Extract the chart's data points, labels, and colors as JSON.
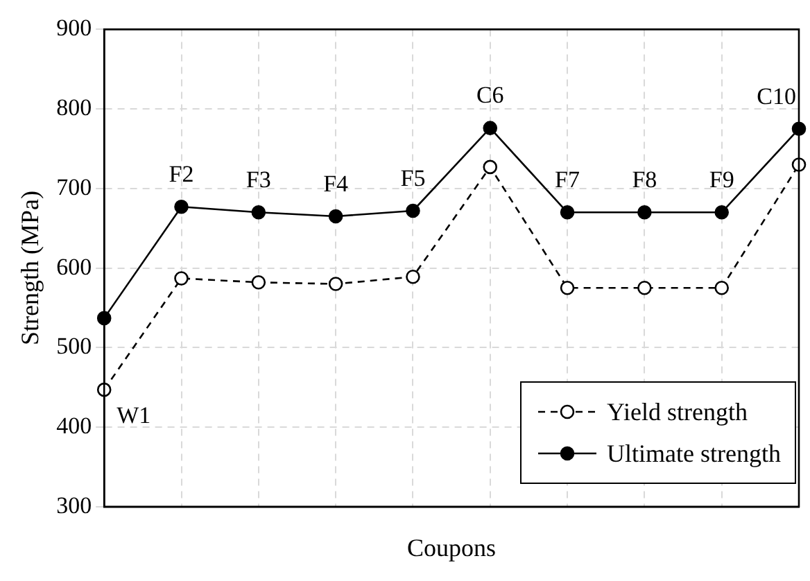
{
  "chart_data": {
    "type": "line",
    "xlabel": "Coupons",
    "ylabel": "Strength (MPa)",
    "categories": [
      "W1",
      "F2",
      "F3",
      "F4",
      "F5",
      "C6",
      "F7",
      "F8",
      "F9",
      "C10"
    ],
    "series": [
      {
        "name": "Yield strength",
        "color": "#000000",
        "line_style": "dashed",
        "values": [
          447,
          587,
          582,
          580,
          589,
          727,
          575,
          575,
          575,
          730
        ]
      },
      {
        "name": "Ultimate strength",
        "color": "#000000",
        "line_style": "solid",
        "values": [
          537,
          677,
          670,
          665,
          672,
          776,
          670,
          670,
          670,
          775
        ]
      }
    ],
    "ylim": [
      300,
      900
    ],
    "yticks": [
      300,
      400,
      500,
      600,
      700,
      800,
      900
    ],
    "grid": true,
    "legend": "bottom right",
    "marker": "circle"
  }
}
